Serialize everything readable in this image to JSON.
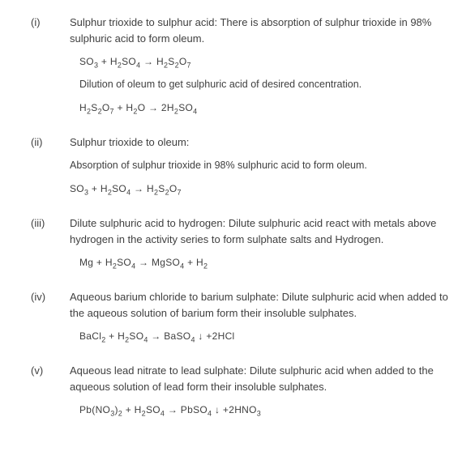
{
  "items": [
    {
      "marker": "(i)",
      "desc": "Sulphur trioxide to sulphur acid: There is absorption of sulphur trioxide in 98% sulphuric acid to form oleum.",
      "eq1": "SO<sub>3</sub> + H<sub>2</sub>SO<sub>4</sub> → H<sub>2</sub>S<sub>2</sub>O<sub>7</sub>",
      "note": "Dilution of oleum to get sulphuric acid of desired concentration.",
      "eq2": "H<sub>2</sub>S<sub>2</sub>O<sub>7</sub> + H<sub>2</sub>O → 2H<sub>2</sub>SO<sub>4</sub>"
    },
    {
      "marker": "(ii)",
      "desc": "Sulphur trioxide to oleum:",
      "note": "Absorption of sulphur trioxide in 98% sulphuric acid to form oleum.",
      "eq1": "SO<sub>3</sub> + H<sub>2</sub>SO<sub>4</sub> → H<sub>2</sub>S<sub>2</sub>O<sub>7</sub>"
    },
    {
      "marker": "(iii)",
      "desc": "Dilute sulphuric acid to hydrogen: Dilute sulphuric acid react with metals above hydrogen in the activity series to form sulphate salts and Hydrogen.",
      "eq1": "Mg + H<sub>2</sub>SO<sub>4</sub> → MgSO<sub>4</sub> + H<sub>2</sub>"
    },
    {
      "marker": "(iv)",
      "desc": "Aqueous barium chloride to barium sulphate: Dilute sulphuric acid when added to the aqueous solution of barium form their insoluble sulphates.",
      "eq1": "BaCl<sub>2</sub> + H<sub>2</sub>SO<sub>4</sub> → BaSO<sub>4</sub> ↓ +2HCl"
    },
    {
      "marker": "(v)",
      "desc": "Aqueous lead nitrate to lead sulphate: Dilute sulphuric acid when added to the aqueous solution of lead form their insoluble sulphates.",
      "eq1": "Pb(NO<sub>3</sub>)<sub>2</sub> + H<sub>2</sub>SO<sub>4</sub> → PbSO<sub>4</sub> ↓ +2HNO<sub>3</sub>"
    }
  ]
}
